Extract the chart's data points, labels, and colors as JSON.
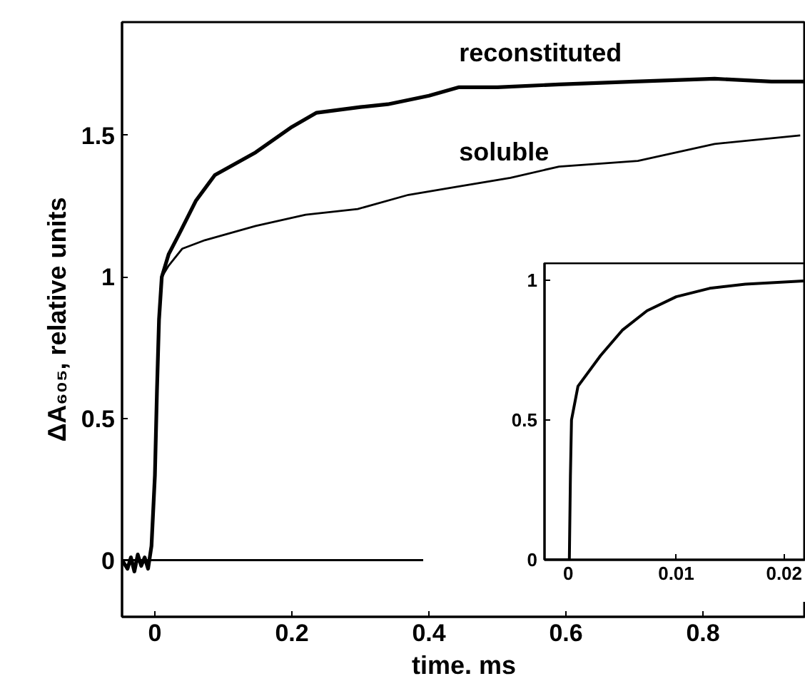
{
  "chart_data": [
    {
      "type": "line",
      "xlabel": "time. ms",
      "ylabel": "ΔA₆₀₅, relative units",
      "xlim": [
        -0.048,
        0.95
      ],
      "ylim": [
        -0.2,
        1.9
      ],
      "xticks": [
        0,
        0.2,
        0.4,
        0.6,
        0.8
      ],
      "yticks": [
        0,
        0.5,
        1,
        1.5
      ],
      "grid": false,
      "ref_lines": [
        {
          "axis": "y",
          "value": 0,
          "color": "#000000"
        }
      ],
      "series": [
        {
          "name": "reconstituted",
          "color": "#000000",
          "x": [
            -0.048,
            -0.04,
            -0.035,
            -0.03,
            -0.025,
            -0.02,
            -0.015,
            -0.01,
            -0.005,
            0.0,
            0.003,
            0.006,
            0.01,
            0.02,
            0.035,
            0.06,
            0.0875,
            0.147,
            0.2,
            0.236,
            0.3,
            0.34,
            0.4,
            0.444,
            0.5,
            0.59,
            0.7,
            0.817,
            0.9,
            0.95
          ],
          "values": [
            0.0,
            -0.03,
            0.01,
            -0.04,
            0.02,
            -0.02,
            0.01,
            -0.03,
            0.05,
            0.3,
            0.6,
            0.85,
            1.0,
            1.08,
            1.15,
            1.27,
            1.36,
            1.44,
            1.53,
            1.58,
            1.6,
            1.61,
            1.64,
            1.67,
            1.67,
            1.68,
            1.69,
            1.7,
            1.69,
            1.69
          ]
        },
        {
          "name": "soluble",
          "color": "#000000",
          "x": [
            -0.048,
            -0.04,
            -0.035,
            -0.03,
            -0.025,
            -0.02,
            -0.015,
            -0.01,
            -0.005,
            0.0,
            0.003,
            0.006,
            0.01,
            0.02,
            0.04,
            0.073,
            0.147,
            0.22,
            0.296,
            0.37,
            0.444,
            0.519,
            0.59,
            0.705,
            0.817,
            0.942
          ],
          "values": [
            0.0,
            -0.03,
            0.01,
            -0.04,
            0.02,
            -0.02,
            0.01,
            -0.03,
            0.05,
            0.3,
            0.6,
            0.85,
            1.0,
            1.04,
            1.1,
            1.13,
            1.18,
            1.22,
            1.24,
            1.29,
            1.32,
            1.35,
            1.39,
            1.41,
            1.47,
            1.5
          ]
        }
      ]
    },
    {
      "type": "line",
      "xlim": [
        -0.0022,
        0.022
      ],
      "ylim": [
        0,
        1.06
      ],
      "xticks": [
        0,
        0.01,
        0.02
      ],
      "yticks": [
        0,
        0.5,
        1
      ],
      "grid": false,
      "series": [
        {
          "color": "#000000",
          "x": [
            -0.0022,
            0.0001,
            0.0002,
            0.0003,
            0.0009,
            0.003,
            0.005,
            0.0073,
            0.01,
            0.0131,
            0.0164,
            0.0218
          ],
          "values": [
            0,
            0,
            0.3,
            0.5,
            0.62,
            0.73,
            0.82,
            0.89,
            0.94,
            0.97,
            0.985,
            0.996
          ]
        }
      ]
    }
  ]
}
